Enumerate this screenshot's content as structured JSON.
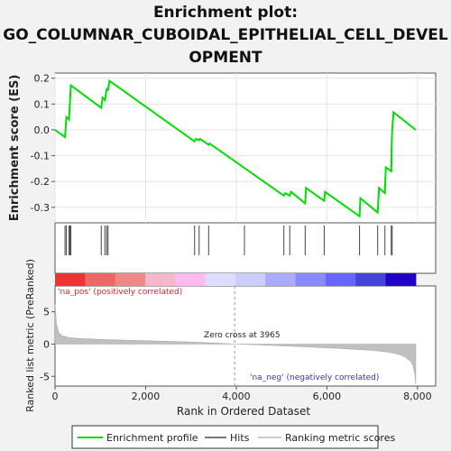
{
  "title_lines": [
    "Enrichment plot:",
    "GO_COLUMNAR_CUBOIDAL_EPITHELIAL_CELL_DEVEL",
    "OPMENT"
  ],
  "chart_data": {
    "type": "line",
    "title": "Enrichment plot: GO_COLUMNAR_CUBOIDAL_EPITHELIAL_CELL_DEVELOPMENT",
    "es_panel": {
      "ylabel": "Enrichment score (ES)",
      "ylim": [
        -0.36,
        0.22
      ],
      "yticks": [
        0.2,
        0.1,
        0.0,
        -0.1,
        -0.2,
        -0.3
      ],
      "ytick_labels": [
        "0.2",
        "0.1",
        "0.0",
        "-0.1",
        "-0.2",
        "-0.3"
      ],
      "series": [
        {
          "name": "Enrichment profile",
          "color": "#00dd00",
          "x": [
            0,
            220,
            250,
            310,
            330,
            350,
            1020,
            1050,
            1100,
            1140,
            1170,
            1200,
            3080,
            3110,
            3180,
            3200,
            3390,
            3410,
            5050,
            5080,
            5180,
            5210,
            5520,
            5540,
            5940,
            5960,
            6720,
            6740,
            7120,
            7150,
            7280,
            7300,
            7420,
            7430,
            7440,
            7470,
            7960
          ],
          "y": [
            0.0,
            -0.028,
            0.05,
            0.04,
            0.11,
            0.172,
            0.085,
            0.125,
            0.115,
            0.158,
            0.155,
            0.19,
            -0.045,
            -0.035,
            -0.04,
            -0.035,
            -0.058,
            -0.053,
            -0.255,
            -0.245,
            -0.255,
            -0.24,
            -0.285,
            -0.225,
            -0.275,
            -0.24,
            -0.335,
            -0.265,
            -0.32,
            -0.225,
            -0.245,
            -0.145,
            -0.16,
            -0.05,
            0.0,
            0.068,
            0.0
          ]
        }
      ]
    },
    "hits": [
      220,
      250,
      310,
      330,
      350,
      1020,
      1100,
      1140,
      1170,
      3080,
      3180,
      3390,
      4180,
      5050,
      5180,
      5520,
      5940,
      6720,
      7120,
      7280,
      7420,
      7440
    ],
    "hits_label": "Hits",
    "gradient_colors": [
      "#ee3333",
      "#ee6666",
      "#f08888",
      "#f4b8c8",
      "#ffbbee",
      "#ddddff",
      "#ccccff",
      "#aaaaff",
      "#8888ff",
      "#6666ff",
      "#4444dd",
      "#2200cc"
    ],
    "metric_panel": {
      "ylabel": "Ranked list metric (PreRanked)",
      "ylim": [
        -6.5,
        9
      ],
      "yticks": [
        5,
        0,
        -5
      ],
      "ytick_labels": [
        "5",
        "0",
        "-5"
      ],
      "color": "#c0c0c0",
      "profile": {
        "x": [
          0,
          30,
          80,
          150,
          300,
          600,
          1000,
          1500,
          2000,
          2500,
          3000,
          3500,
          3965,
          4500,
          5000,
          5500,
          6000,
          6500,
          7000,
          7300,
          7500,
          7650,
          7750,
          7850,
          7900,
          7940,
          7960
        ],
        "y": [
          6.2,
          3.2,
          1.8,
          1.3,
          1.0,
          0.85,
          0.72,
          0.62,
          0.52,
          0.42,
          0.32,
          0.18,
          0.0,
          -0.12,
          -0.28,
          -0.42,
          -0.58,
          -0.76,
          -0.98,
          -1.2,
          -1.45,
          -1.75,
          -2.1,
          -2.7,
          -3.3,
          -4.6,
          -6.2
        ]
      },
      "zero_cross_label": "Zero cross at 3965",
      "zero_cross_x": 3965,
      "pos_label": "'na_pos' (positively correlated)",
      "neg_label": "'na_neg' (negatively correlated)"
    },
    "xlabel": "Rank in Ordered Dataset",
    "xlim": [
      0,
      8400
    ],
    "xticks": [
      0,
      2000,
      4000,
      6000,
      8000
    ],
    "xtick_labels": [
      "0",
      "2,000",
      "4,000",
      "6,000",
      "8,000"
    ],
    "x_max": 7960,
    "legend": [
      "Enrichment profile",
      "Hits",
      "Ranking metric scores"
    ],
    "legend_placement": "bottom"
  }
}
